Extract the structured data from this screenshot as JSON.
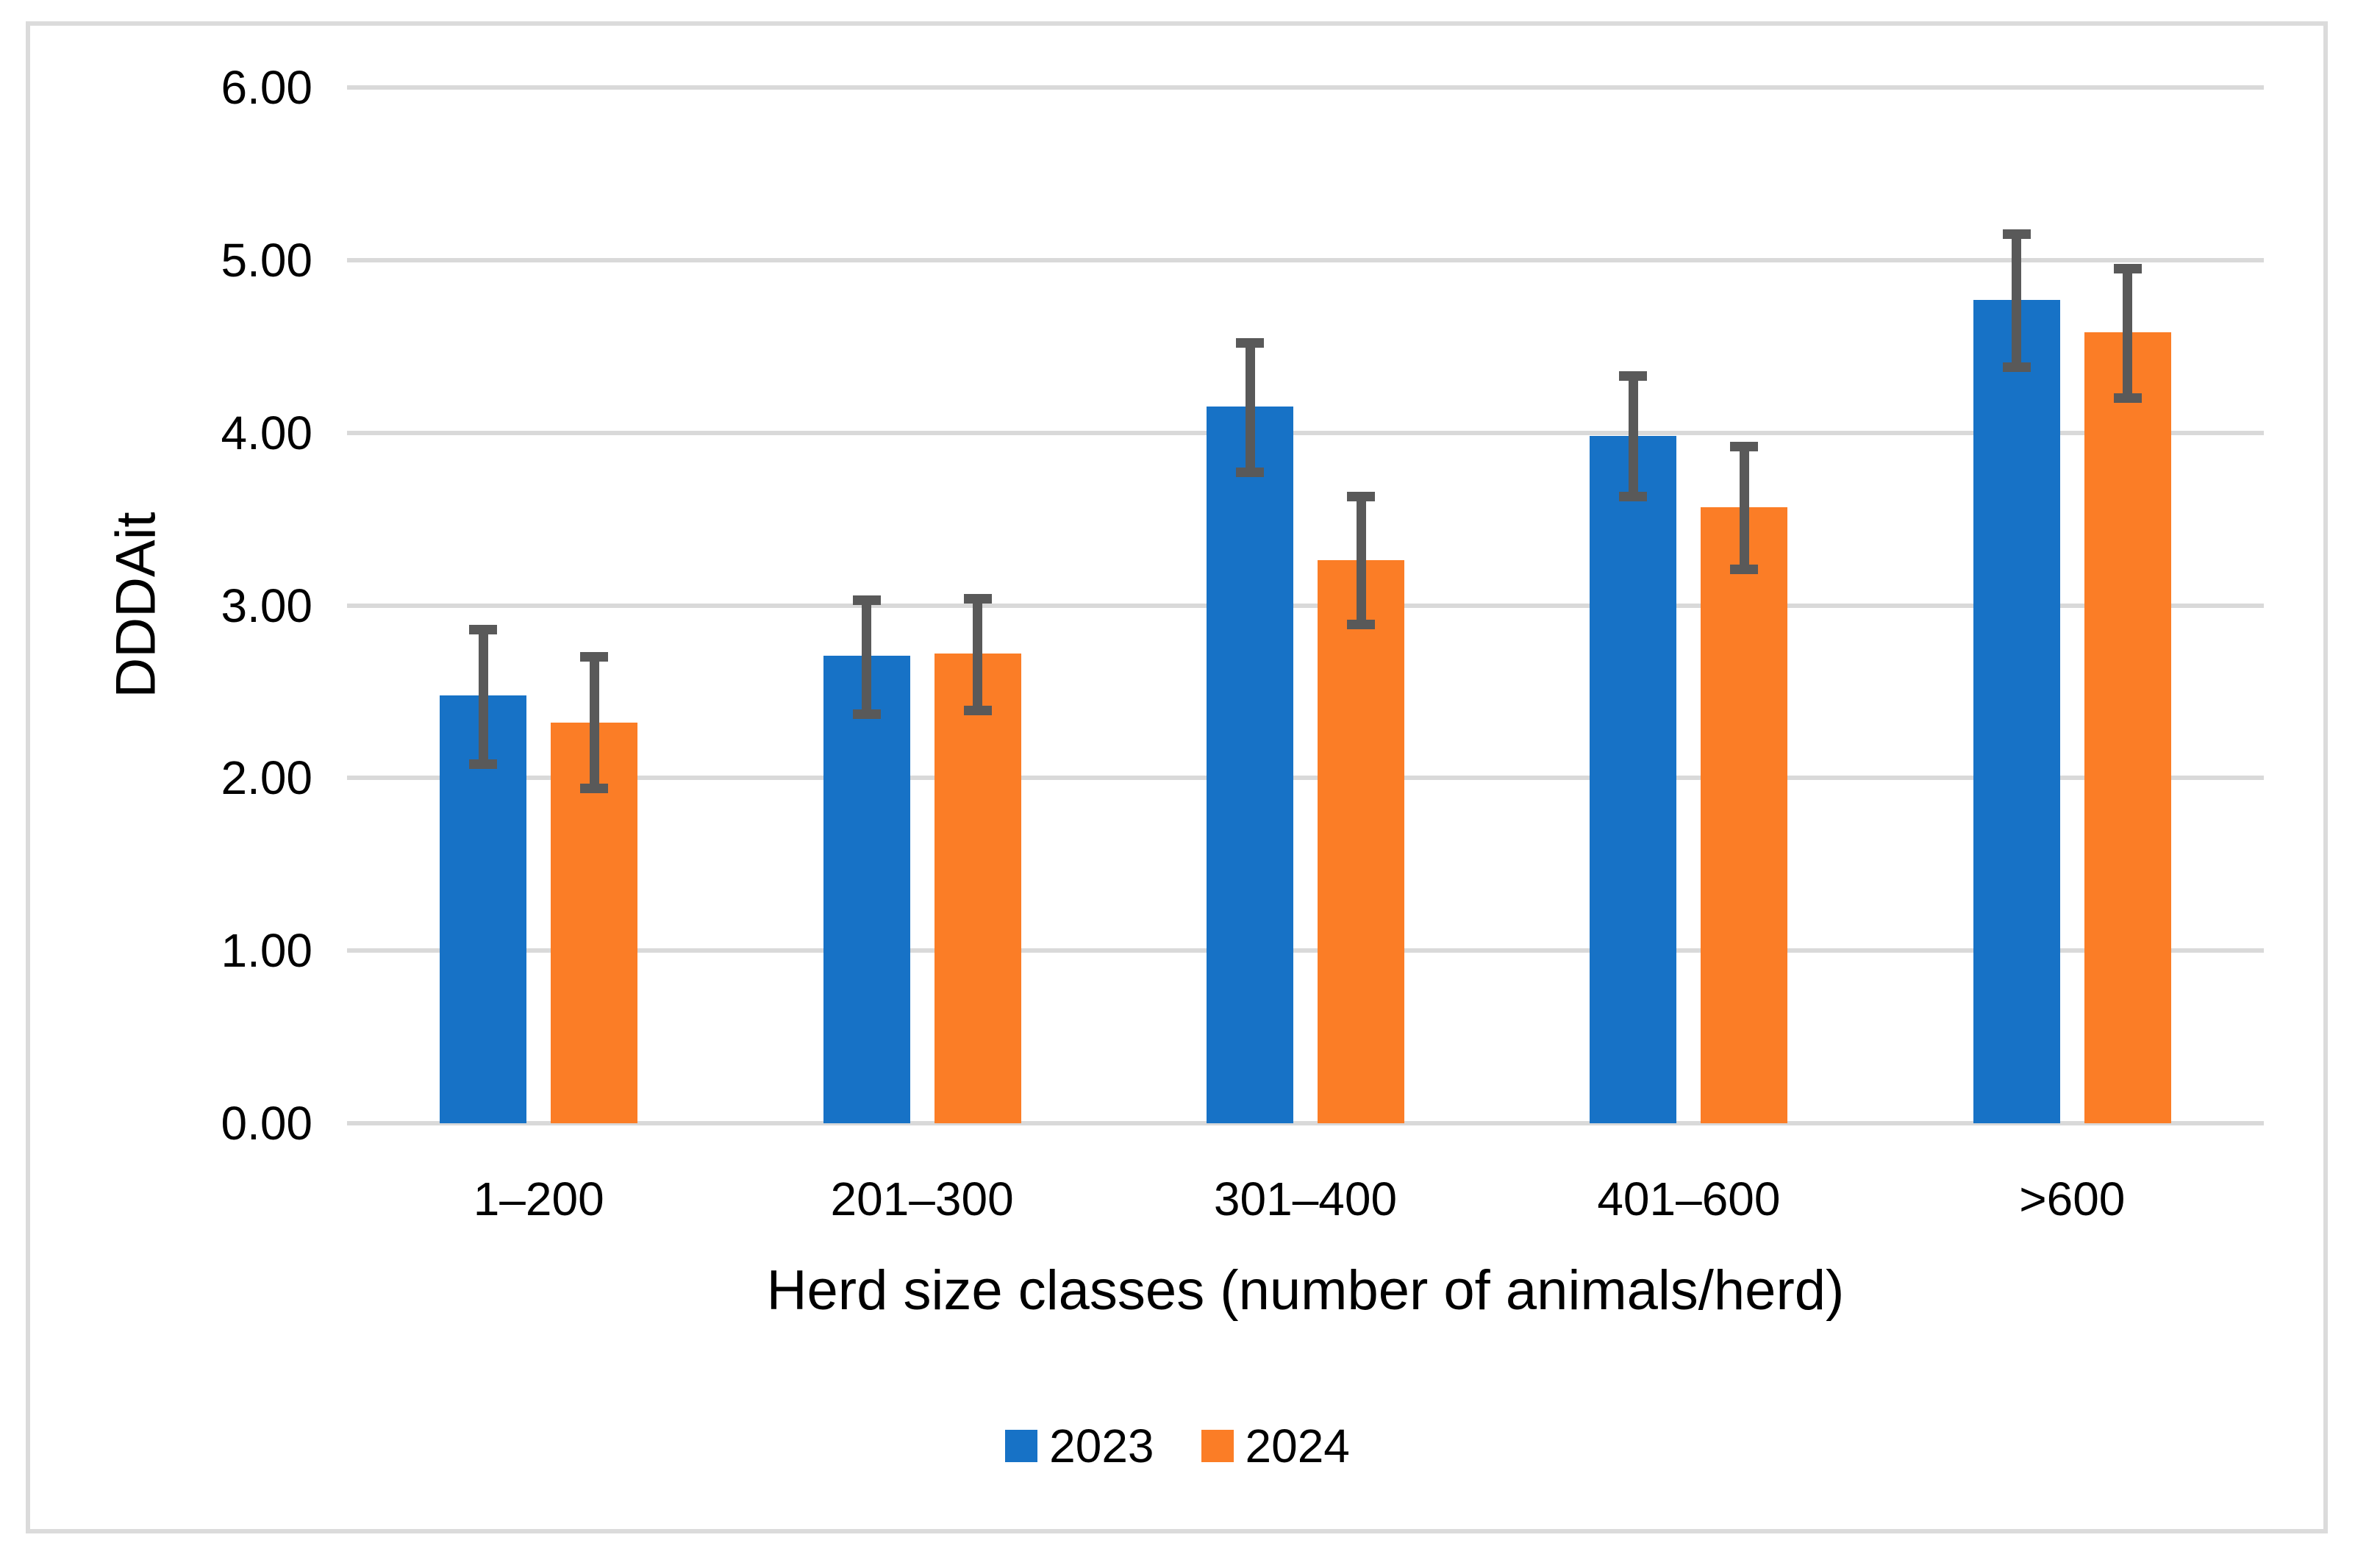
{
  "figure": {
    "background_color": "#FFFFFF",
    "border_color": "#DBDBDB"
  },
  "chart_data": {
    "type": "bar",
    "title": "",
    "xlabel": "Herd size classes (number of animals/herd)",
    "ylabel": "DDDAit",
    "ylim": [
      0,
      6
    ],
    "ytick_labels": [
      "0.00",
      "1.00",
      "2.00",
      "3.00",
      "4.00",
      "5.00",
      "6.00"
    ],
    "grid": true,
    "gridline_color": "#D9D9D9",
    "axis_line_color": "#D9D9D9",
    "error_bar_color": "#595959",
    "legend_position": "bottom-center",
    "categories": [
      "1–200",
      "201–300",
      "301–400",
      "401–600",
      ">600"
    ],
    "series": [
      {
        "name": "2023",
        "color": "#1772C6",
        "values": [
          2.48,
          2.71,
          4.15,
          3.98,
          4.77
        ],
        "error_low": [
          2.08,
          2.37,
          3.77,
          3.63,
          4.38
        ],
        "error_high": [
          2.86,
          3.03,
          4.52,
          4.33,
          5.15
        ]
      },
      {
        "name": "2024",
        "color": "#FB7D26",
        "values": [
          2.32,
          2.72,
          3.26,
          3.57,
          4.58
        ],
        "error_low": [
          1.94,
          2.39,
          2.89,
          3.21,
          4.2
        ],
        "error_high": [
          2.7,
          3.04,
          3.63,
          3.92,
          4.95
        ]
      }
    ]
  }
}
